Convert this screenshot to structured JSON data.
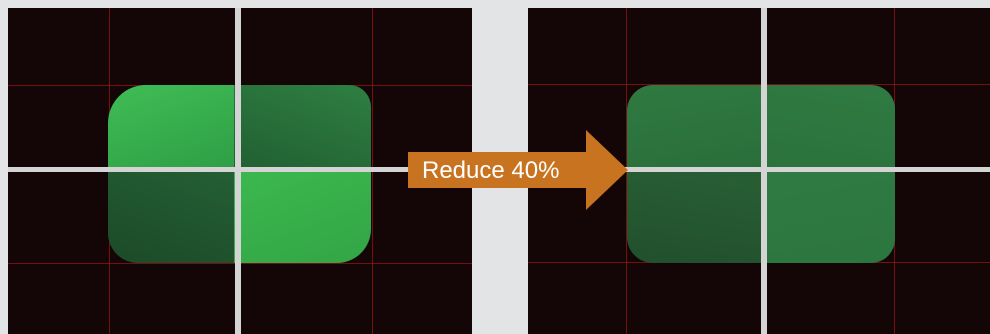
{
  "comparison": {
    "arrow": {
      "label": "Reduce 40%",
      "color": "#c8731f"
    },
    "colors": {
      "background": "#e3e4e6",
      "panel": "#140607",
      "grid": "#961416",
      "divider": "#d4d4d4",
      "sample_bright": "#3ab54a",
      "sample_dim": "#2c6a3a"
    },
    "left_image": {
      "description_key": "before",
      "brightness": 1.0
    },
    "right_image": {
      "description_key": "after",
      "brightness": 0.6
    }
  }
}
